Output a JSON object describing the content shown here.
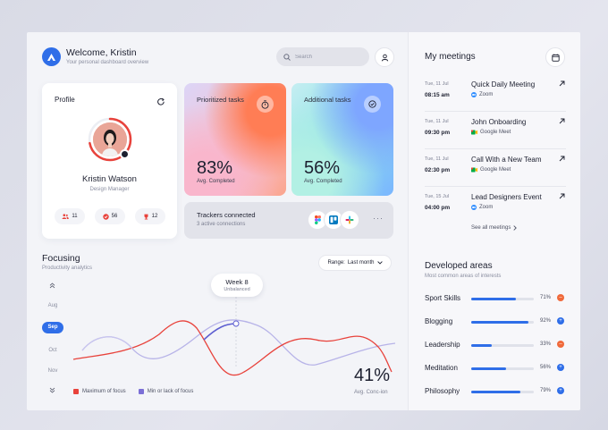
{
  "header": {
    "welcome": "Welcome, Kristin",
    "subtitle": "Your personal dashboard overview",
    "search_placeholder": "Search"
  },
  "profile": {
    "title": "Profile",
    "name": "Kristin Watson",
    "role": "Design Manager",
    "progress": 0.72,
    "stats": [
      {
        "icon": "users-icon",
        "value": "11",
        "color": "#e8423b"
      },
      {
        "icon": "check-icon",
        "value": "56",
        "color": "#e8423b"
      },
      {
        "icon": "trophy-icon",
        "value": "12",
        "color": "#e8423b"
      }
    ]
  },
  "cards": [
    {
      "title": "Prioritized tasks",
      "icon": "stopwatch-icon",
      "value": "83%",
      "label": "Avg. Completed"
    },
    {
      "title": "Additional tasks",
      "icon": "check-circle-icon",
      "value": "56%",
      "label": "Avg. Completed"
    }
  ],
  "trackers": {
    "title": "Trackers connected",
    "subtitle": "3 active connections",
    "apps": [
      "figma-icon",
      "trello-icon",
      "slack-icon"
    ]
  },
  "focusing": {
    "title": "Focusing",
    "subtitle": "Productivity analytics",
    "range_label": "Range:",
    "range_value": "Last month",
    "months": [
      "Aug",
      "Sep",
      "Oct",
      "Nov"
    ],
    "active_month": "Sep",
    "tooltip_week": "Week 8",
    "tooltip_status": "Unbalanced",
    "legend": [
      {
        "name": "Maximum of focus",
        "color": "#e8423b"
      },
      {
        "name": "Min or lack of focus",
        "color": "#7b6fd6"
      }
    ],
    "big_value": "41%",
    "big_label": "Avg. Conc-ion"
  },
  "meetings": {
    "title": "My meetings",
    "items": [
      {
        "date": "Tue, 11 Jul",
        "time": "08:15 am",
        "name": "Quick Daily Meeting",
        "platform": "Zoom",
        "platform_icon": "zoom-icon"
      },
      {
        "date": "Tue, 11 Jul",
        "time": "09:30 pm",
        "name": "John Onboarding",
        "platform": "Google Meet",
        "platform_icon": "google-meet-icon"
      },
      {
        "date": "Tue, 11 Jul",
        "time": "02:30 pm",
        "name": "Call With a New Team",
        "platform": "Google Meet",
        "platform_icon": "google-meet-icon"
      },
      {
        "date": "Tue, 15 Jul",
        "time": "04:00 pm",
        "name": "Lead Designers Event",
        "platform": "Zoom",
        "platform_icon": "zoom-icon"
      }
    ],
    "see_all": "See all meetings"
  },
  "areas": {
    "title": "Developed areas",
    "subtitle": "Most common areas of interests",
    "items": [
      {
        "name": "Sport Skills",
        "pct": "71%",
        "value": 0.71,
        "trend": "down",
        "trend_color": "#f0693a"
      },
      {
        "name": "Blogging",
        "pct": "92%",
        "value": 0.92,
        "trend": "up",
        "trend_color": "#2f6ee8"
      },
      {
        "name": "Leadership",
        "pct": "33%",
        "value": 0.33,
        "trend": "down",
        "trend_color": "#f0693a"
      },
      {
        "name": "Meditation",
        "pct": "56%",
        "value": 0.56,
        "trend": "up",
        "trend_color": "#2f6ee8"
      },
      {
        "name": "Philosophy",
        "pct": "79%",
        "value": 0.79,
        "trend": "up",
        "trend_color": "#2f6ee8"
      }
    ]
  }
}
